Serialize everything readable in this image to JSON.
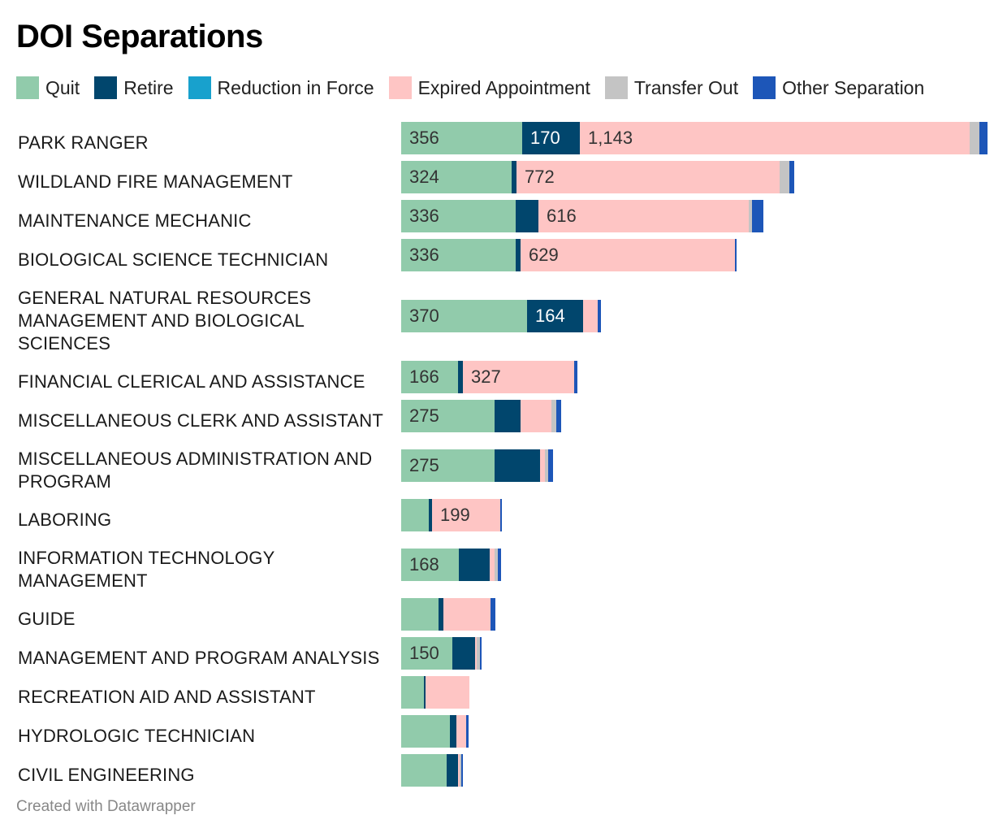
{
  "chart_data": {
    "type": "bar",
    "orientation": "horizontal",
    "stacked": true,
    "title": "DOI Separations",
    "xlabel": "",
    "ylabel": "",
    "legend_position": "top-left",
    "grid": false,
    "categories": [
      "PARK RANGER",
      "WILDLAND FIRE MANAGEMENT",
      "MAINTENANCE MECHANIC",
      "BIOLOGICAL SCIENCE TECHNICIAN",
      "GENERAL NATURAL RESOURCES MANAGEMENT AND BIOLOGICAL SCIENCES",
      "FINANCIAL CLERICAL AND ASSISTANCE",
      "MISCELLANEOUS CLERK AND ASSISTANT",
      "MISCELLANEOUS ADMINISTRATION AND PROGRAM",
      "LABORING",
      "INFORMATION TECHNOLOGY MANAGEMENT",
      "GUIDE",
      "MANAGEMENT AND PROGRAM ANALYSIS",
      "RECREATION AID AND ASSISTANT",
      "HYDROLOGIC TECHNICIAN",
      "CIVIL ENGINEERING"
    ],
    "series": [
      {
        "name": "Quit",
        "color": "#91cbab",
        "label_color": "#333333",
        "values": [
          356,
          324,
          336,
          336,
          370,
          166,
          275,
          275,
          81,
          168,
          109,
          150,
          67,
          143,
          133
        ],
        "labels": [
          "356",
          "324",
          "336",
          "336",
          "370",
          "166",
          "275",
          "275",
          "",
          "168",
          "",
          "150",
          "",
          "",
          ""
        ]
      },
      {
        "name": "Retire",
        "color": "#01466d",
        "label_color": "#ffffff",
        "values": [
          170,
          14,
          66,
          14,
          164,
          14,
          76,
          133,
          9,
          90,
          14,
          67,
          5,
          19,
          33
        ],
        "labels": [
          "170",
          "",
          "",
          "",
          "164",
          "",
          "",
          "",
          "",
          "",
          "",
          "",
          "",
          "",
          ""
        ]
      },
      {
        "name": "Reduction in Force",
        "color": "#18a1cd",
        "label_color": "#ffffff",
        "values": [
          0,
          0,
          0,
          0,
          0,
          0,
          0,
          0,
          0,
          0,
          0,
          0,
          0,
          0,
          0
        ],
        "labels": [
          "",
          "",
          "",
          "",
          "",
          "",
          "",
          "",
          "",
          "",
          "",
          "",
          "",
          "",
          ""
        ]
      },
      {
        "name": "Expired Appointment",
        "color": "#fec5c4",
        "label_color": "#333333",
        "values": [
          1143,
          772,
          616,
          629,
          43,
          327,
          90,
          14,
          199,
          14,
          138,
          5,
          129,
          29,
          5
        ],
        "labels": [
          "1,143",
          "772",
          "616",
          "629",
          "",
          "327",
          "",
          "",
          "199",
          "",
          "",
          "",
          "",
          "",
          ""
        ]
      },
      {
        "name": "Transfer Out",
        "color": "#c4c4c4",
        "label_color": "#333333",
        "values": [
          28,
          28,
          9,
          0,
          0,
          0,
          14,
          9,
          0,
          9,
          0,
          9,
          0,
          0,
          5
        ],
        "labels": [
          "",
          "",
          "",
          "",
          "",
          "",
          "",
          "",
          "",
          "",
          "",
          "",
          "",
          "",
          ""
        ]
      },
      {
        "name": "Other Separation",
        "color": "#1d56b8",
        "label_color": "#ffffff",
        "values": [
          24,
          14,
          33,
          5,
          9,
          9,
          14,
          14,
          5,
          9,
          14,
          5,
          0,
          7,
          5
        ],
        "labels": [
          "",
          "",
          "",
          "",
          "",
          "",
          "",
          "",
          "",
          "",
          "",
          "",
          "",
          "",
          ""
        ]
      }
    ],
    "xlim": [
      0,
      1725
    ]
  },
  "footer": "Created with Datawrapper"
}
